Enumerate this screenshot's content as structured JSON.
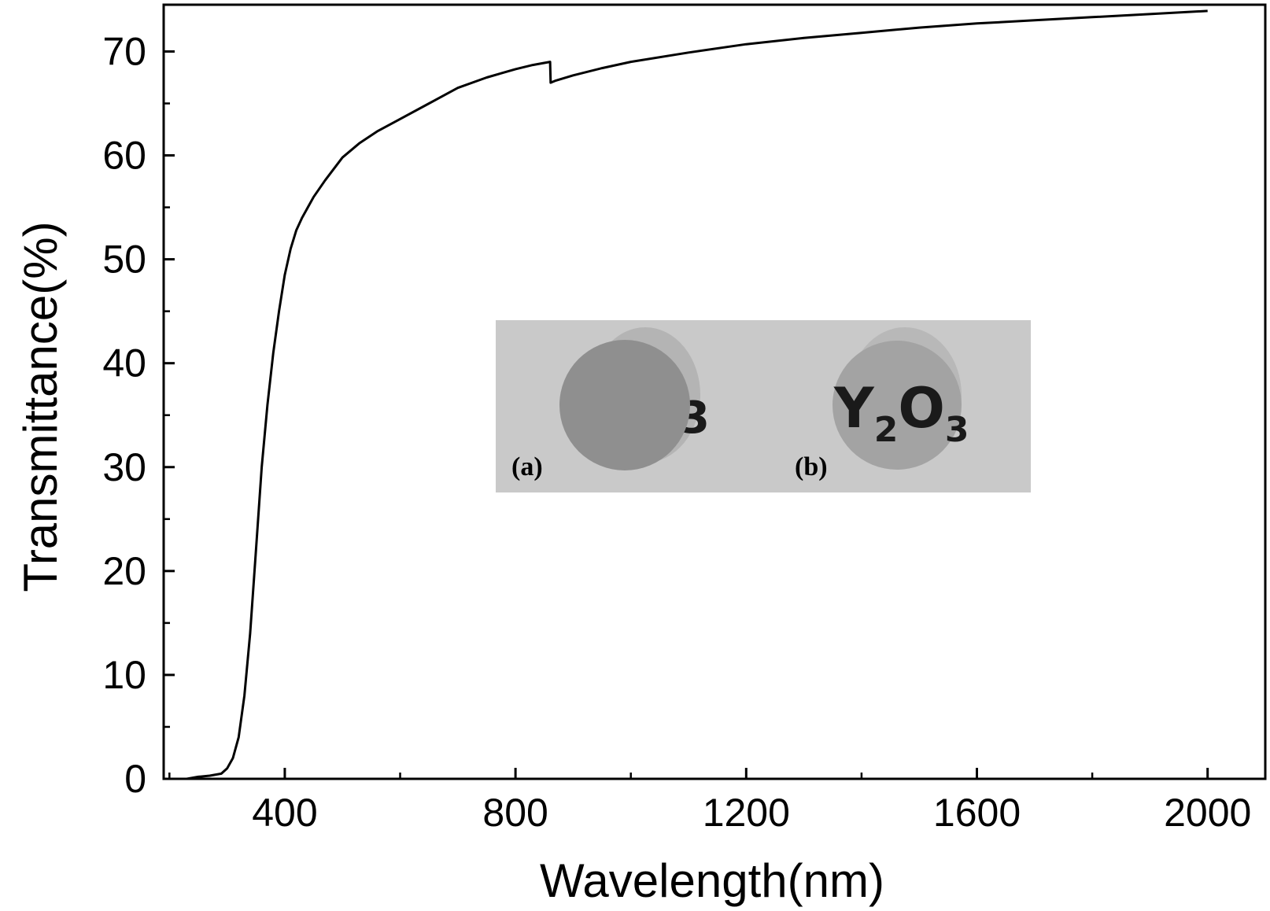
{
  "chart_data": {
    "type": "line",
    "title": "",
    "xlabel": "Wavelength(nm)",
    "ylabel": "Transmittance(%)",
    "xlim": [
      190,
      2100
    ],
    "ylim": [
      0,
      74.5
    ],
    "xticks": [
      400,
      800,
      1200,
      1600,
      2000
    ],
    "xtick_labels": [
      "400",
      "800",
      "1200",
      "1600",
      "2000"
    ],
    "yticks": [
      0,
      10,
      20,
      30,
      40,
      50,
      60,
      70
    ],
    "ytick_labels": [
      "0",
      "10",
      "20",
      "30",
      "40",
      "50",
      "60",
      "70"
    ],
    "x_minor_step": 200,
    "y_minor_step": 5,
    "grid": false,
    "legend": "none",
    "series": [
      {
        "color": "#000000",
        "x": [
          210,
          230,
          250,
          270,
          290,
          300,
          310,
          320,
          330,
          340,
          350,
          360,
          370,
          380,
          390,
          400,
          410,
          420,
          430,
          440,
          450,
          470,
          500,
          530,
          560,
          600,
          650,
          700,
          750,
          800,
          830,
          860,
          861,
          870,
          900,
          950,
          1000,
          1100,
          1200,
          1300,
          1400,
          1500,
          1600,
          1700,
          1800,
          1900,
          2000
        ],
        "y": [
          0.0,
          0.0,
          0.2,
          0.3,
          0.5,
          1.0,
          2.0,
          4.0,
          8.0,
          14.0,
          22.0,
          30.0,
          36.0,
          41.0,
          45.0,
          48.5,
          51.0,
          52.8,
          54.0,
          55.0,
          56.0,
          57.6,
          59.8,
          61.2,
          62.3,
          63.5,
          65.0,
          66.5,
          67.5,
          68.3,
          68.7,
          69.0,
          67.0,
          67.2,
          67.7,
          68.4,
          69.0,
          69.9,
          70.7,
          71.3,
          71.8,
          72.3,
          72.7,
          73.0,
          73.3,
          73.6,
          73.9
        ]
      }
    ],
    "inset": {
      "description_labels": [
        "(a)",
        "(b)"
      ],
      "disk_a_partial_text": "3",
      "disk_b_text_main": "Y",
      "disk_b_sub1": "2",
      "disk_b_text_mid": "O",
      "disk_b_sub2": "3"
    }
  },
  "colors": {
    "axis": "#000000",
    "line": "#000000",
    "inset_background": "#c9c9c9",
    "disk_a": "#8f8f8f",
    "disk_b": "#a3a3a3"
  }
}
